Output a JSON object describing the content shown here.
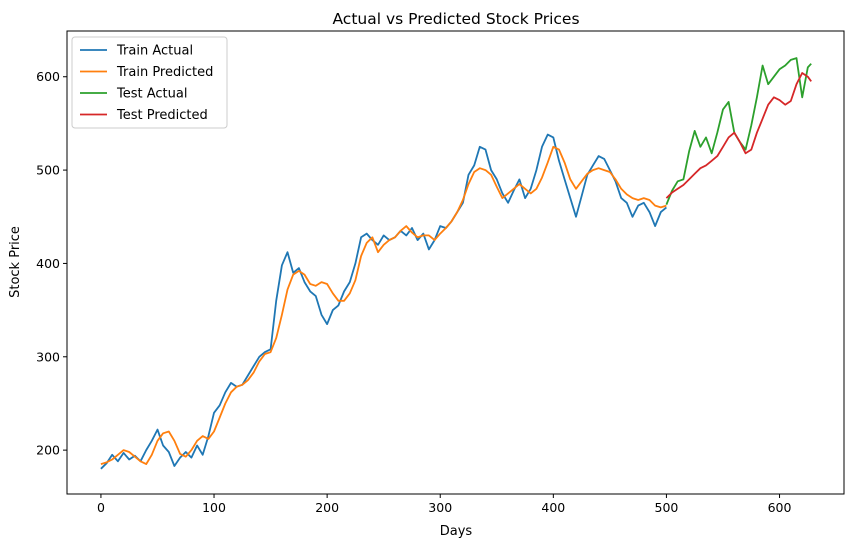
{
  "chart_data": {
    "type": "line",
    "title": "Actual vs Predicted Stock Prices",
    "xlabel": "Days",
    "ylabel": "Stock Price",
    "xlim": [
      -30,
      657
    ],
    "ylim": [
      153,
      649
    ],
    "xticks": [
      0,
      100,
      200,
      300,
      400,
      500,
      600
    ],
    "yticks": [
      200,
      300,
      400,
      500,
      600
    ],
    "grid": false,
    "legend_position": "top-left",
    "colors": {
      "train_actual": "#1f77b4",
      "train_predicted": "#ff7f0e",
      "test_actual": "#2ca02c",
      "test_predicted": "#d62728"
    },
    "series": [
      {
        "name": "Train Actual",
        "key": "train_actual",
        "x": [
          0,
          5,
          10,
          15,
          20,
          25,
          30,
          35,
          40,
          45,
          50,
          55,
          60,
          65,
          70,
          75,
          80,
          85,
          90,
          95,
          100,
          105,
          110,
          115,
          120,
          125,
          130,
          135,
          140,
          145,
          150,
          155,
          160,
          165,
          170,
          175,
          180,
          185,
          190,
          195,
          200,
          205,
          210,
          215,
          220,
          225,
          230,
          235,
          240,
          245,
          250,
          255,
          260,
          265,
          270,
          275,
          280,
          285,
          290,
          295,
          300,
          305,
          310,
          315,
          320,
          325,
          330,
          335,
          340,
          345,
          350,
          355,
          360,
          365,
          370,
          375,
          380,
          385,
          390,
          395,
          400,
          405,
          410,
          415,
          420,
          425,
          430,
          435,
          440,
          445,
          450,
          455,
          460,
          465,
          470,
          475,
          480,
          485,
          490,
          495,
          500
        ],
        "y": [
          180,
          186,
          195,
          188,
          197,
          190,
          194,
          188,
          200,
          210,
          222,
          205,
          198,
          183,
          192,
          198,
          192,
          205,
          195,
          215,
          240,
          248,
          262,
          272,
          268,
          270,
          280,
          290,
          300,
          305,
          308,
          360,
          398,
          412,
          390,
          395,
          380,
          370,
          365,
          345,
          335,
          350,
          355,
          370,
          380,
          400,
          428,
          432,
          425,
          420,
          430,
          425,
          428,
          435,
          430,
          438,
          425,
          432,
          415,
          425,
          440,
          438,
          445,
          455,
          465,
          495,
          505,
          525,
          522,
          500,
          490,
          475,
          465,
          478,
          490,
          470,
          480,
          500,
          525,
          538,
          535,
          510,
          490,
          470,
          450,
          472,
          495,
          505,
          515,
          512,
          500,
          488,
          470,
          465,
          450,
          462,
          465,
          455,
          440,
          455,
          460
        ]
      },
      {
        "name": "Train Predicted",
        "key": "train_predicted",
        "x": [
          0,
          5,
          10,
          15,
          20,
          25,
          30,
          35,
          40,
          45,
          50,
          55,
          60,
          65,
          70,
          75,
          80,
          85,
          90,
          95,
          100,
          105,
          110,
          115,
          120,
          125,
          130,
          135,
          140,
          145,
          150,
          155,
          160,
          165,
          170,
          175,
          180,
          185,
          190,
          195,
          200,
          205,
          210,
          215,
          220,
          225,
          230,
          235,
          240,
          245,
          250,
          255,
          260,
          265,
          270,
          275,
          280,
          285,
          290,
          295,
          300,
          305,
          310,
          315,
          320,
          325,
          330,
          335,
          340,
          345,
          350,
          355,
          360,
          365,
          370,
          375,
          380,
          385,
          390,
          395,
          400,
          405,
          410,
          415,
          420,
          425,
          430,
          435,
          440,
          445,
          450,
          455,
          460,
          465,
          470,
          475,
          480,
          485,
          490,
          495,
          500
        ],
        "y": [
          185,
          187,
          190,
          195,
          200,
          198,
          193,
          188,
          185,
          195,
          210,
          218,
          220,
          210,
          196,
          193,
          200,
          210,
          215,
          212,
          220,
          235,
          250,
          262,
          268,
          270,
          275,
          283,
          295,
          303,
          305,
          320,
          345,
          372,
          388,
          392,
          388,
          378,
          376,
          380,
          378,
          368,
          360,
          360,
          368,
          382,
          408,
          422,
          428,
          412,
          420,
          425,
          428,
          435,
          440,
          433,
          428,
          430,
          430,
          425,
          432,
          438,
          445,
          455,
          468,
          485,
          498,
          502,
          500,
          495,
          482,
          470,
          475,
          480,
          485,
          480,
          475,
          480,
          492,
          508,
          525,
          522,
          508,
          490,
          480,
          488,
          496,
          500,
          502,
          500,
          498,
          490,
          480,
          474,
          470,
          468,
          470,
          468,
          462,
          460,
          462
        ]
      },
      {
        "name": "Test Actual",
        "key": "test_actual",
        "x": [
          500,
          505,
          510,
          515,
          520,
          525,
          530,
          535,
          540,
          545,
          550,
          555,
          560,
          565,
          570,
          575,
          580,
          585,
          590,
          595,
          600,
          605,
          610,
          615,
          620,
          625,
          628
        ],
        "y": [
          463,
          478,
          488,
          490,
          520,
          542,
          525,
          535,
          518,
          540,
          565,
          573,
          540,
          530,
          522,
          548,
          578,
          612,
          592,
          600,
          608,
          612,
          618,
          620,
          578,
          610,
          614
        ]
      },
      {
        "name": "Test Predicted",
        "key": "test_predicted",
        "x": [
          500,
          505,
          510,
          515,
          520,
          525,
          530,
          535,
          540,
          545,
          550,
          555,
          560,
          565,
          570,
          575,
          580,
          585,
          590,
          595,
          600,
          605,
          610,
          615,
          620,
          625,
          628
        ],
        "y": [
          470,
          476,
          480,
          484,
          490,
          496,
          502,
          505,
          510,
          515,
          525,
          535,
          540,
          530,
          518,
          522,
          540,
          555,
          570,
          578,
          575,
          570,
          574,
          592,
          604,
          600,
          595
        ]
      }
    ]
  }
}
